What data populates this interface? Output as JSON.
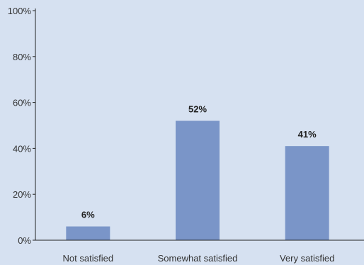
{
  "chart_data": {
    "type": "bar",
    "categories": [
      "Not satisfied",
      "Somewhat satisfied",
      "Very satisfied"
    ],
    "values": [
      6,
      52,
      41
    ],
    "data_labels": [
      "6%",
      "52%",
      "41%"
    ],
    "title": "",
    "xlabel": "",
    "ylabel": "",
    "ylim": [
      0,
      100
    ],
    "y_ticks": [
      0,
      20,
      40,
      60,
      80,
      100
    ],
    "y_tick_labels": [
      "0%",
      "20%",
      "40%",
      "60%",
      "80%",
      "100%"
    ],
    "grid": false,
    "legend": "none"
  },
  "colors": {
    "background": "#d6e1f1",
    "bar": "#7a95c8",
    "axis": "#222222"
  }
}
